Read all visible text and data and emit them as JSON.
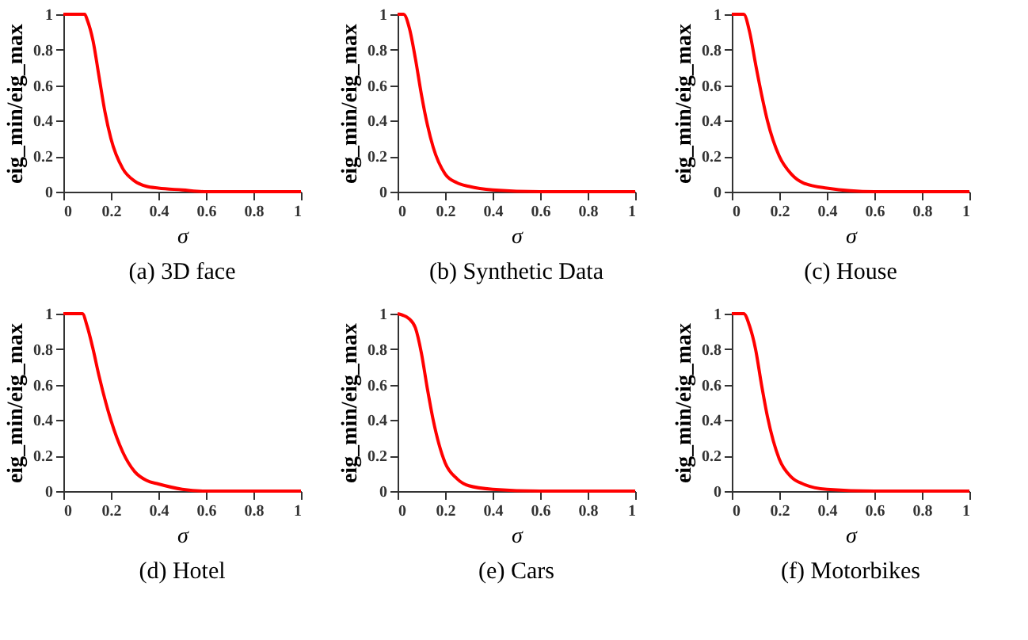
{
  "chart_data": [
    {
      "type": "line",
      "title": "(a) 3D face",
      "xlabel": "σ",
      "ylabel": "eig_min/eig_max",
      "xlim": [
        0,
        1
      ],
      "ylim": [
        0,
        1
      ],
      "xticks": [
        0,
        0.2,
        0.4,
        0.6,
        0.8,
        1
      ],
      "yticks": [
        0,
        0.2,
        0.4,
        0.6,
        0.8,
        1
      ],
      "grid": false,
      "marker": "none",
      "line_style": "solid",
      "series": [
        {
          "color": "#ff0000",
          "x": [
            0,
            0.05,
            0.09,
            0.1,
            0.125,
            0.15,
            0.175,
            0.2,
            0.25,
            0.3,
            0.35,
            0.4,
            0.5,
            0.6,
            0.8,
            1
          ],
          "values": [
            1,
            1,
            1,
            0.97,
            0.85,
            0.65,
            0.45,
            0.3,
            0.13,
            0.06,
            0.03,
            0.02,
            0.01,
            0,
            0,
            0
          ]
        }
      ]
    },
    {
      "type": "line",
      "title": "(b) Synthetic Data",
      "xlabel": "σ",
      "ylabel": "eig_min/eig_max",
      "xlim": [
        0,
        1
      ],
      "ylim": [
        0,
        1
      ],
      "xticks": [
        0,
        0.2,
        0.4,
        0.6,
        0.8,
        1
      ],
      "yticks": [
        0,
        0.2,
        0.4,
        0.6,
        0.8,
        1
      ],
      "grid": false,
      "marker": "none",
      "line_style": "solid",
      "series": [
        {
          "color": "#ff0000",
          "x": [
            0,
            0.025,
            0.05,
            0.075,
            0.1,
            0.125,
            0.15,
            0.2,
            0.25,
            0.3,
            0.4,
            0.6,
            0.8,
            1
          ],
          "values": [
            1,
            1,
            0.92,
            0.75,
            0.55,
            0.38,
            0.25,
            0.1,
            0.05,
            0.03,
            0.01,
            0,
            0,
            0
          ]
        }
      ]
    },
    {
      "type": "line",
      "title": "(c) House",
      "xlabel": "σ",
      "ylabel": "eig_min/eig_max",
      "xlim": [
        0,
        1
      ],
      "ylim": [
        0,
        1
      ],
      "xticks": [
        0,
        0.2,
        0.4,
        0.6,
        0.8,
        1
      ],
      "yticks": [
        0,
        0.2,
        0.4,
        0.6,
        0.8,
        1
      ],
      "grid": false,
      "marker": "none",
      "line_style": "solid",
      "series": [
        {
          "color": "#ff0000",
          "x": [
            0,
            0.05,
            0.075,
            0.1,
            0.125,
            0.15,
            0.2,
            0.25,
            0.3,
            0.4,
            0.6,
            0.8,
            1
          ],
          "values": [
            1,
            1,
            0.9,
            0.72,
            0.55,
            0.4,
            0.2,
            0.1,
            0.05,
            0.02,
            0,
            0,
            0
          ]
        }
      ]
    },
    {
      "type": "line",
      "title": "(d) Hotel",
      "xlabel": "σ",
      "ylabel": "eig_min/eig_max",
      "xlim": [
        0,
        1
      ],
      "ylim": [
        0,
        1
      ],
      "xticks": [
        0,
        0.2,
        0.4,
        0.6,
        0.8,
        1
      ],
      "yticks": [
        0,
        0.2,
        0.4,
        0.6,
        0.8,
        1
      ],
      "grid": false,
      "marker": "none",
      "line_style": "solid",
      "series": [
        {
          "color": "#ff0000",
          "x": [
            0,
            0.05,
            0.08,
            0.1,
            0.125,
            0.15,
            0.2,
            0.25,
            0.3,
            0.35,
            0.4,
            0.5,
            0.6,
            0.8,
            1
          ],
          "values": [
            1,
            1,
            1,
            0.93,
            0.8,
            0.65,
            0.4,
            0.22,
            0.11,
            0.06,
            0.04,
            0.01,
            0,
            0,
            0
          ]
        }
      ]
    },
    {
      "type": "line",
      "title": "(e) Cars",
      "xlabel": "σ",
      "ylabel": "eig_min/eig_max",
      "xlim": [
        0,
        1
      ],
      "ylim": [
        0,
        1
      ],
      "xticks": [
        0,
        0.2,
        0.4,
        0.6,
        0.8,
        1
      ],
      "yticks": [
        0,
        0.2,
        0.4,
        0.6,
        0.8,
        1
      ],
      "grid": false,
      "marker": "none",
      "line_style": "solid",
      "series": [
        {
          "color": "#ff0000",
          "x": [
            0,
            0.05,
            0.075,
            0.1,
            0.125,
            0.15,
            0.2,
            0.25,
            0.3,
            0.4,
            0.6,
            0.8,
            1
          ],
          "values": [
            1,
            0.97,
            0.92,
            0.78,
            0.58,
            0.4,
            0.16,
            0.07,
            0.03,
            0.01,
            0,
            0,
            0
          ]
        }
      ]
    },
    {
      "type": "line",
      "title": "(f) Motorbikes",
      "xlabel": "σ",
      "ylabel": "eig_min/eig_max",
      "xlim": [
        0,
        1
      ],
      "ylim": [
        0,
        1
      ],
      "xticks": [
        0,
        0.2,
        0.4,
        0.6,
        0.8,
        1
      ],
      "yticks": [
        0,
        0.2,
        0.4,
        0.6,
        0.8,
        1
      ],
      "grid": false,
      "marker": "none",
      "line_style": "solid",
      "series": [
        {
          "color": "#ff0000",
          "x": [
            0,
            0.05,
            0.075,
            0.1,
            0.125,
            0.15,
            0.2,
            0.25,
            0.3,
            0.4,
            0.6,
            0.8,
            1
          ],
          "values": [
            1,
            1,
            0.93,
            0.8,
            0.6,
            0.42,
            0.18,
            0.08,
            0.04,
            0.01,
            0,
            0,
            0
          ]
        }
      ]
    }
  ]
}
